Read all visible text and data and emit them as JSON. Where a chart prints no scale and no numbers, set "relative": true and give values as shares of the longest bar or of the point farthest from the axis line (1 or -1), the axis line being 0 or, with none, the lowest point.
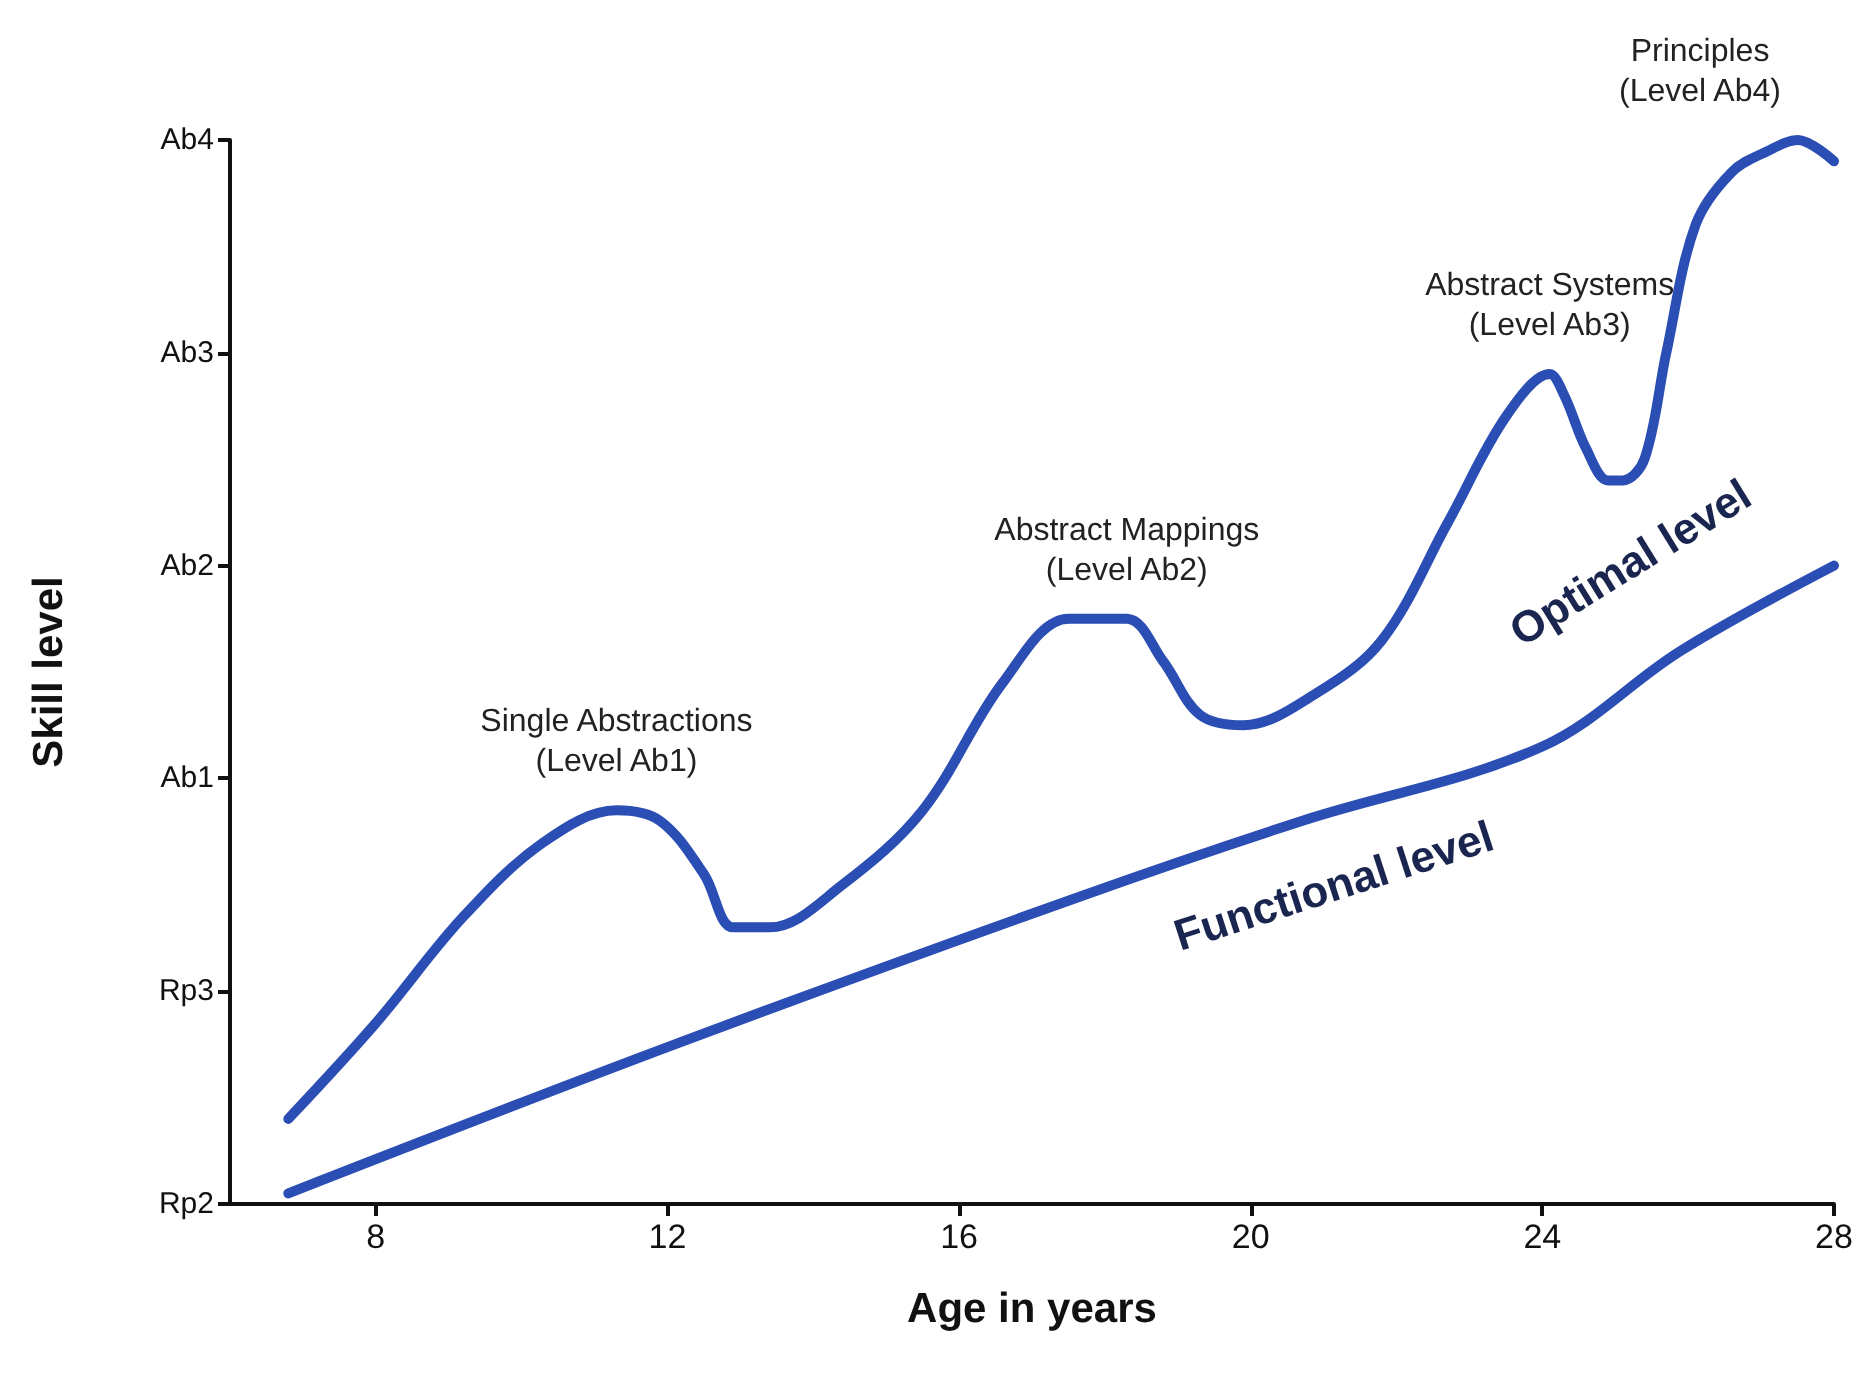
{
  "chart_data": {
    "type": "line",
    "xlabel": "Age in years",
    "ylabel": "Skill level",
    "relative": true,
    "xlim": [
      6,
      28
    ],
    "xticks": [
      8,
      12,
      16,
      20,
      24,
      28
    ],
    "y_categories": [
      "Ab4",
      "Ab3",
      "Ab2",
      "Ab1",
      "Rp3",
      "Rp2"
    ],
    "grid": false,
    "legend": false,
    "marker": "none",
    "line_style": "solid",
    "series": [
      {
        "name": "Optimal level",
        "color": "#2b4eb5",
        "x": [
          6.8,
          8.0,
          9.2,
          10.3,
          11.3,
          11.9,
          12.5,
          12.9,
          13.4,
          14.4,
          15.5,
          16.6,
          17.5,
          18.3,
          18.8,
          19.3,
          19.9,
          20.9,
          21.8,
          22.7,
          23.5,
          24.1,
          24.3,
          24.6,
          24.9,
          25.1,
          25.4,
          25.7,
          26.1,
          26.6,
          27.1,
          27.5,
          28.0
        ],
        "values": [
          0.08,
          0.17,
          0.27,
          0.34,
          0.37,
          0.36,
          0.31,
          0.26,
          0.26,
          0.3,
          0.37,
          0.49,
          0.55,
          0.55,
          0.51,
          0.46,
          0.45,
          0.48,
          0.53,
          0.64,
          0.74,
          0.78,
          0.76,
          0.71,
          0.68,
          0.68,
          0.7,
          0.8,
          0.92,
          0.97,
          0.99,
          1.0,
          0.98
        ]
      },
      {
        "name": "Functional level",
        "color": "#2b4eb5",
        "x": [
          6.8,
          12.1,
          17.7,
          20.7,
          24.0,
          25.9,
          28.0
        ],
        "values": [
          0.01,
          0.15,
          0.29,
          0.36,
          0.43,
          0.52,
          0.6
        ]
      }
    ],
    "annotations": [
      "Single Abstractions\n(Level Ab1)",
      "Abstract Mappings\n(Level Ab2)",
      "Abstract Systems\n(Level Ab3)",
      "Principles\n(Level Ab4)"
    ]
  }
}
